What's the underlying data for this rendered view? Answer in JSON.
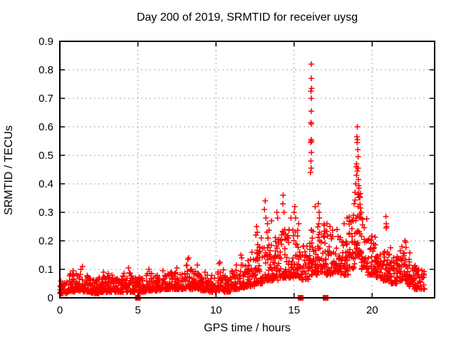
{
  "figure": {
    "title": "Day 200 of 2019, SRMTID for receiver uysg",
    "xlabel": "GPS time / hours",
    "ylabel": "SRMTID / TECUs"
  },
  "chart_data": {
    "type": "scatter",
    "title": "Day 200 of 2019, SRMTID for receiver uysg",
    "xlabel": "GPS time / hours",
    "ylabel": "SRMTID / TECUs",
    "xlim": [
      0,
      24
    ],
    "ylim": [
      0,
      0.9
    ],
    "xticks": [
      0,
      5,
      10,
      15,
      20
    ],
    "xtick_labels": [
      "0",
      "5",
      "10",
      "15",
      "20"
    ],
    "yticks": [
      0,
      0.1,
      0.2,
      0.3,
      0.4,
      0.5,
      0.6,
      0.7,
      0.8,
      0.9
    ],
    "ytick_labels": [
      "0",
      "0.1",
      "0.2",
      "0.3",
      "0.4",
      "0.5",
      "0.6",
      "0.7",
      "0.8",
      "0.9"
    ],
    "grid": true,
    "legend": "none",
    "colors": {
      "points": "#ff0000",
      "grid": "#a6a6a6",
      "axis": "#000000",
      "background": "#ffffff"
    },
    "series": [
      {
        "name": "SRMTID",
        "marker": "plus",
        "band_format": "[t_start, t_end, y_min, y_max, n_points] dense noise band read from plot",
        "band": [
          [
            0.0,
            0.5,
            0.015,
            0.065,
            36
          ],
          [
            0.5,
            1.0,
            0.02,
            0.085,
            36
          ],
          [
            1.0,
            1.5,
            0.025,
            0.095,
            36
          ],
          [
            1.5,
            2.0,
            0.02,
            0.08,
            36
          ],
          [
            2.0,
            2.5,
            0.015,
            0.07,
            36
          ],
          [
            2.5,
            3.0,
            0.02,
            0.075,
            36
          ],
          [
            3.0,
            3.5,
            0.02,
            0.08,
            36
          ],
          [
            3.5,
            4.0,
            0.02,
            0.075,
            36
          ],
          [
            4.0,
            4.5,
            0.02,
            0.09,
            36
          ],
          [
            4.5,
            5.0,
            0.02,
            0.08,
            36
          ],
          [
            5.0,
            5.5,
            0.02,
            0.08,
            36
          ],
          [
            5.5,
            6.0,
            0.025,
            0.09,
            36
          ],
          [
            6.0,
            6.5,
            0.025,
            0.085,
            36
          ],
          [
            6.5,
            7.0,
            0.03,
            0.09,
            36
          ],
          [
            7.0,
            7.5,
            0.03,
            0.095,
            36
          ],
          [
            7.5,
            8.0,
            0.03,
            0.1,
            36
          ],
          [
            8.0,
            8.5,
            0.03,
            0.115,
            36
          ],
          [
            8.5,
            9.0,
            0.03,
            0.1,
            36
          ],
          [
            9.0,
            9.5,
            0.025,
            0.08,
            36
          ],
          [
            9.5,
            10.0,
            0.02,
            0.08,
            36
          ],
          [
            10.0,
            10.5,
            0.025,
            0.1,
            36
          ],
          [
            10.5,
            11.0,
            0.02,
            0.08,
            36
          ],
          [
            11.0,
            11.5,
            0.03,
            0.1,
            36
          ],
          [
            11.5,
            12.0,
            0.035,
            0.12,
            36
          ],
          [
            12.0,
            12.5,
            0.04,
            0.14,
            36
          ],
          [
            12.5,
            13.0,
            0.05,
            0.2,
            40
          ],
          [
            13.0,
            13.5,
            0.06,
            0.24,
            40
          ],
          [
            13.5,
            14.0,
            0.06,
            0.22,
            38
          ],
          [
            14.0,
            14.5,
            0.07,
            0.24,
            38
          ],
          [
            14.5,
            15.0,
            0.07,
            0.26,
            38
          ],
          [
            15.0,
            15.5,
            0.07,
            0.24,
            38
          ],
          [
            15.5,
            16.0,
            0.06,
            0.19,
            36
          ],
          [
            16.0,
            16.5,
            0.08,
            0.24,
            38
          ],
          [
            16.5,
            17.0,
            0.09,
            0.26,
            40
          ],
          [
            17.0,
            17.5,
            0.08,
            0.24,
            38
          ],
          [
            17.5,
            18.0,
            0.09,
            0.22,
            38
          ],
          [
            18.0,
            18.5,
            0.08,
            0.22,
            38
          ],
          [
            18.5,
            18.9,
            0.1,
            0.3,
            30
          ],
          [
            18.9,
            19.3,
            0.14,
            0.4,
            40
          ],
          [
            19.3,
            19.7,
            0.1,
            0.28,
            30
          ],
          [
            19.7,
            20.2,
            0.08,
            0.22,
            38
          ],
          [
            20.2,
            20.7,
            0.07,
            0.19,
            38
          ],
          [
            20.7,
            21.2,
            0.06,
            0.18,
            38
          ],
          [
            21.2,
            21.7,
            0.05,
            0.16,
            38
          ],
          [
            21.7,
            22.2,
            0.06,
            0.19,
            38
          ],
          [
            22.2,
            22.7,
            0.04,
            0.16,
            38
          ],
          [
            22.7,
            23.1,
            0.03,
            0.12,
            30
          ],
          [
            23.1,
            23.35,
            0.03,
            0.1,
            16
          ]
        ],
        "peaks": [
          [
            0.85,
            0.095
          ],
          [
            1.35,
            0.1
          ],
          [
            1.45,
            0.11
          ],
          [
            2.8,
            0.09
          ],
          [
            3.1,
            0.085
          ],
          [
            4.4,
            0.105
          ],
          [
            5.7,
            0.1
          ],
          [
            6.6,
            0.095
          ],
          [
            7.5,
            0.105
          ],
          [
            8.2,
            0.135
          ],
          [
            8.25,
            0.14
          ],
          [
            8.8,
            0.115
          ],
          [
            9.3,
            0.09
          ],
          [
            10.2,
            0.12
          ],
          [
            10.25,
            0.125
          ],
          [
            11.3,
            0.115
          ],
          [
            11.6,
            0.15
          ],
          [
            11.65,
            0.14
          ],
          [
            12.3,
            0.16
          ],
          [
            12.55,
            0.22
          ],
          [
            12.6,
            0.25
          ],
          [
            12.65,
            0.23
          ],
          [
            12.9,
            0.21
          ],
          [
            13.1,
            0.31
          ],
          [
            13.15,
            0.34
          ],
          [
            13.2,
            0.28
          ],
          [
            13.3,
            0.26
          ],
          [
            13.55,
            0.27
          ],
          [
            13.9,
            0.3
          ],
          [
            13.95,
            0.28
          ],
          [
            14.28,
            0.33
          ],
          [
            14.3,
            0.36
          ],
          [
            14.35,
            0.3
          ],
          [
            14.8,
            0.28
          ],
          [
            15.0,
            0.3
          ],
          [
            15.05,
            0.32
          ],
          [
            15.1,
            0.28
          ],
          [
            15.3,
            0.26
          ],
          [
            16.35,
            0.32
          ],
          [
            16.55,
            0.33
          ],
          [
            16.6,
            0.3
          ],
          [
            16.62,
            0.28
          ],
          [
            17.1,
            0.26
          ],
          [
            17.3,
            0.25
          ],
          [
            17.75,
            0.24
          ],
          [
            18.2,
            0.26
          ],
          [
            18.4,
            0.28
          ],
          [
            16.05,
            0.44
          ],
          [
            16.1,
            0.455
          ],
          [
            16.08,
            0.48
          ],
          [
            16.1,
            0.51
          ],
          [
            16.07,
            0.545
          ],
          [
            16.11,
            0.55
          ],
          [
            16.09,
            0.555
          ],
          [
            16.1,
            0.61
          ],
          [
            16.08,
            0.615
          ],
          [
            16.1,
            0.655
          ],
          [
            16.1,
            0.7
          ],
          [
            16.08,
            0.725
          ],
          [
            16.12,
            0.735
          ],
          [
            16.1,
            0.77
          ],
          [
            16.1,
            0.82
          ],
          [
            18.8,
            0.29
          ],
          [
            18.85,
            0.33
          ],
          [
            18.9,
            0.37
          ],
          [
            18.95,
            0.4
          ],
          [
            18.98,
            0.46
          ],
          [
            19.0,
            0.43
          ],
          [
            19.0,
            0.47
          ],
          [
            19.02,
            0.565
          ],
          [
            19.04,
            0.545
          ],
          [
            19.05,
            0.445
          ],
          [
            19.05,
            0.6
          ],
          [
            19.06,
            0.555
          ],
          [
            19.08,
            0.52
          ],
          [
            19.1,
            0.455
          ],
          [
            19.1,
            0.495
          ],
          [
            19.12,
            0.415
          ],
          [
            19.15,
            0.385
          ],
          [
            19.2,
            0.355
          ],
          [
            19.25,
            0.315
          ],
          [
            19.3,
            0.3
          ],
          [
            20.88,
            0.285
          ],
          [
            20.9,
            0.245
          ],
          [
            20.9,
            0.26
          ],
          [
            20.92,
            0.25
          ],
          [
            22.1,
            0.2
          ],
          [
            22.15,
            0.195
          ]
        ]
      },
      {
        "name": "zero-flags",
        "marker": "filled-square",
        "points": [
          [
            5.0,
            0
          ],
          [
            15.42,
            0
          ],
          [
            17.02,
            0
          ]
        ]
      }
    ]
  }
}
